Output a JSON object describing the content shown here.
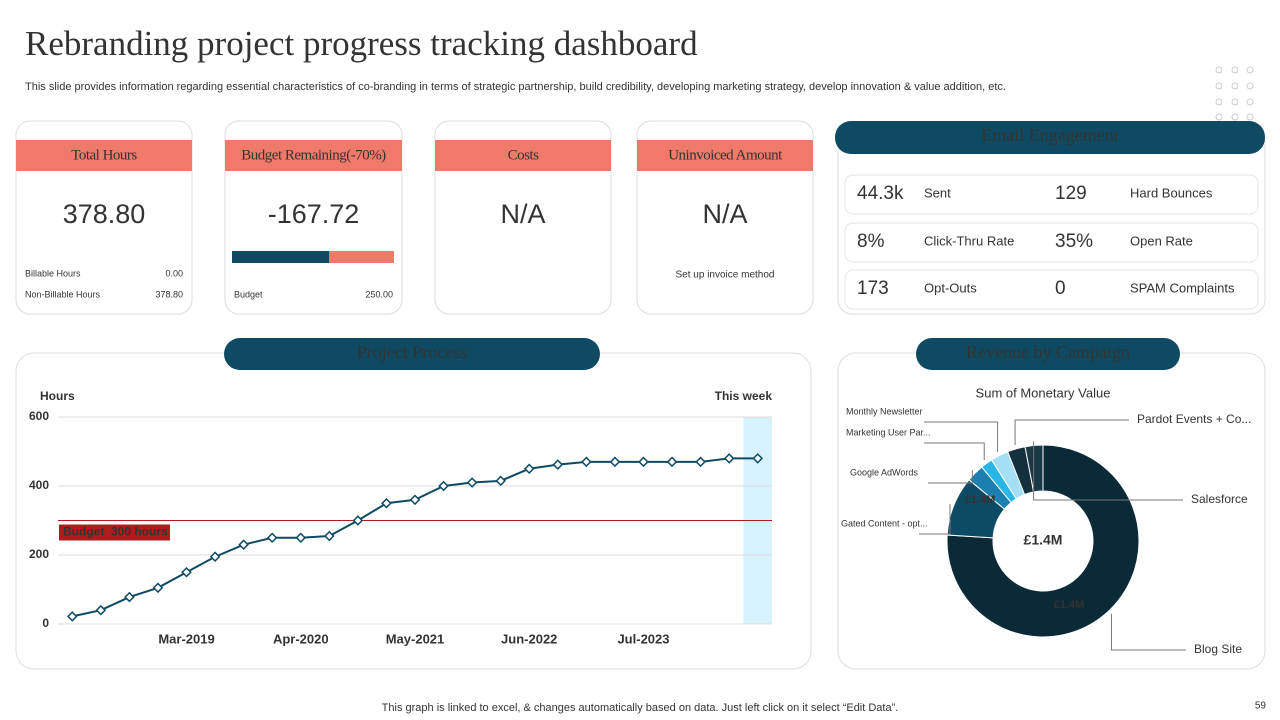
{
  "header": {
    "title": "Rebranding project progress tracking dashboard",
    "subtitle": "This slide provides information regarding essential characteristics of co-branding in terms of strategic partnership, build credibility, developing marketing strategy, develop innovation & value addition, etc."
  },
  "cards": [
    {
      "title": "Total Hours",
      "value": "378.80",
      "rows": [
        [
          "Billable Hours",
          "0.00"
        ],
        [
          "Non-Billable Hours",
          "378.80"
        ]
      ]
    },
    {
      "title": "Budget Remaining(-70%)",
      "value": "-167.72",
      "rows": [
        [
          "Budget",
          "250.00"
        ]
      ]
    },
    {
      "title": "Costs",
      "value": "N/A"
    },
    {
      "title": "Uninvoiced Amount",
      "value": "N/A",
      "note": "Set up invoice method"
    }
  ],
  "email": {
    "title": "Email Engagement",
    "items": [
      {
        "value": "44.3k",
        "label": "Sent"
      },
      {
        "value": "129",
        "label": "Hard Bounces"
      },
      {
        "value": "8%",
        "label": "Click-Thru Rate"
      },
      {
        "value": "35%",
        "label": "Open Rate"
      },
      {
        "value": "173",
        "label": "Opt-Outs"
      },
      {
        "value": "0",
        "label": "SPAM Complaints"
      }
    ]
  },
  "chart_data": [
    {
      "type": "line",
      "title": "Project Process",
      "y_label": "Hours",
      "annotation": "This week",
      "categories": [
        null,
        null,
        null,
        null,
        "Mar-2019",
        null,
        null,
        null,
        "Apr-2020",
        null,
        null,
        null,
        "May-2021",
        null,
        null,
        null,
        "Jun-2022",
        null,
        null,
        null,
        "Jul-2023",
        null,
        null,
        null,
        null
      ],
      "values": [
        22,
        40,
        78,
        105,
        150,
        195,
        230,
        250,
        250,
        255,
        300,
        350,
        360,
        400,
        410,
        415,
        450,
        462,
        470,
        470,
        470,
        470,
        470,
        480,
        480
      ],
      "color": "#0e4a62",
      "ylim": [
        0,
        600
      ],
      "yticks": [
        0,
        200,
        400,
        600
      ],
      "grid": true,
      "budget_line": {
        "value": 300,
        "label": "Budget  300 hours",
        "color": "#b01c1c"
      }
    },
    {
      "type": "pie",
      "title": "Revenue by Campaign",
      "subtitle": "Sum of Monetary Value",
      "center_label": "£1.4M",
      "categories": [
        "Blog Site",
        "Gated Content - opt...",
        "Google AdWords",
        "Marketing User Par...",
        "Monthly Newsletter",
        "Pardot Events + Co...",
        "Salesforce"
      ],
      "values": [
        76,
        10,
        3,
        2,
        3,
        3,
        3
      ],
      "colors": [
        "#0b2a38",
        "#0d4a63",
        "#1c7fb0",
        "#29b6e6",
        "#a5dff3",
        "#14303d",
        "#1b3a48"
      ],
      "segment_labels": [
        "£1.4M",
        "£1.4M"
      ]
    }
  ],
  "footer": {
    "note": "This graph is linked to excel, & changes automatically based on data. Just left click on it select “Edit Data”.",
    "page": "59"
  }
}
